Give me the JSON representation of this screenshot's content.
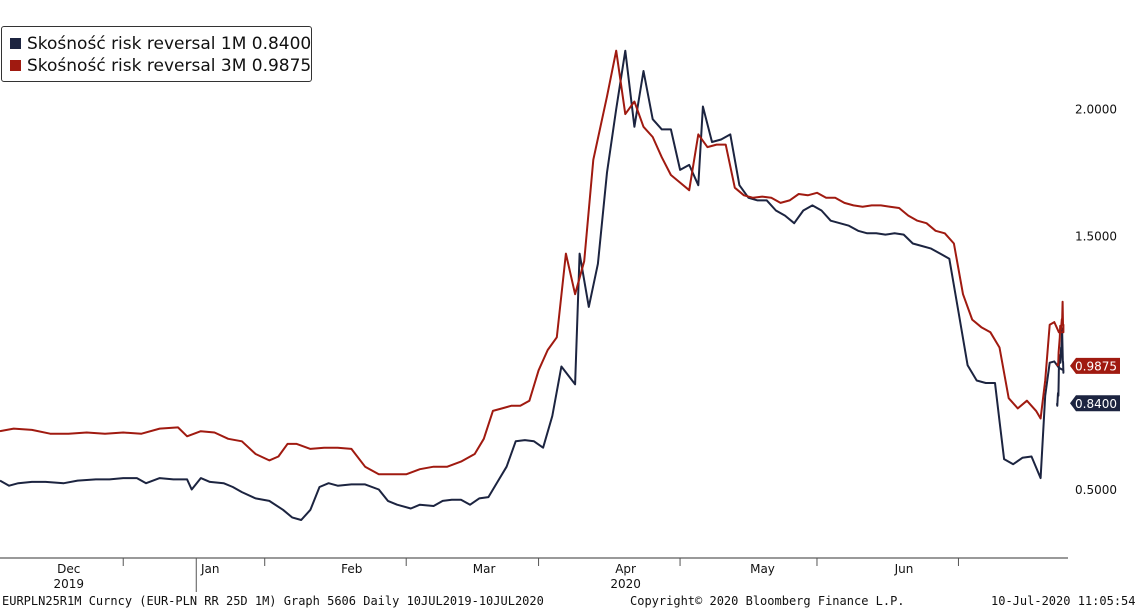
{
  "chart_data": {
    "type": "line",
    "x_range": [
      "2019-11-19",
      "2020-07-10"
    ],
    "ylim": [
      0.23,
      2.43
    ],
    "y_ticks": [
      {
        "value": 2.0,
        "label": "2.0000"
      },
      {
        "value": 1.5,
        "label": "1.5000"
      },
      {
        "value": 0.5,
        "label": "0.5000"
      }
    ],
    "x_month_labels": [
      {
        "date": "2019-12-01",
        "label": "Dec"
      },
      {
        "date": "2020-01-01",
        "label": "Jan"
      },
      {
        "date": "2020-02-01",
        "label": "Feb"
      },
      {
        "date": "2020-03-01",
        "label": "Mar"
      },
      {
        "date": "2020-04-01",
        "label": "Apr"
      },
      {
        "date": "2020-05-01",
        "label": "May"
      },
      {
        "date": "2020-06-01",
        "label": "Jun"
      }
    ],
    "x_month_separators": [
      "2019-12-16",
      "2020-01-16",
      "2020-02-16",
      "2020-03-16",
      "2020-04-16",
      "2020-05-16",
      "2020-06-16"
    ],
    "x_year_labels": [
      {
        "date": "2019-12-01",
        "label": "2019"
      },
      {
        "date": "2020-04-01",
        "label": "2020"
      }
    ],
    "x_year_separator": "2020-01-01",
    "grid": false,
    "legend_position": "top-left",
    "series": [
      {
        "name": "Skośność risk reversal 1M 0.8400",
        "color": "#1c2440",
        "last_value_label": "0.8400",
        "points": [
          [
            "2019-11-19",
            0.535
          ],
          [
            "2019-11-21",
            0.515
          ],
          [
            "2019-11-23",
            0.525
          ],
          [
            "2019-11-26",
            0.53
          ],
          [
            "2019-11-29",
            0.53
          ],
          [
            "2019-12-03",
            0.525
          ],
          [
            "2019-12-06",
            0.535
          ],
          [
            "2019-12-10",
            0.54
          ],
          [
            "2019-12-13",
            0.54
          ],
          [
            "2019-12-16",
            0.545
          ],
          [
            "2019-12-19",
            0.545
          ],
          [
            "2019-12-21",
            0.525
          ],
          [
            "2019-12-24",
            0.545
          ],
          [
            "2019-12-27",
            0.54
          ],
          [
            "2019-12-30",
            0.54
          ],
          [
            "2019-12-31",
            0.5
          ],
          [
            "2020-01-02",
            0.545
          ],
          [
            "2020-01-04",
            0.53
          ],
          [
            "2020-01-07",
            0.525
          ],
          [
            "2020-01-09",
            0.51
          ],
          [
            "2020-01-11",
            0.49
          ],
          [
            "2020-01-14",
            0.465
          ],
          [
            "2020-01-17",
            0.455
          ],
          [
            "2020-01-20",
            0.42
          ],
          [
            "2020-01-22",
            0.39
          ],
          [
            "2020-01-24",
            0.38
          ],
          [
            "2020-01-26",
            0.42
          ],
          [
            "2020-01-28",
            0.51
          ],
          [
            "2020-01-30",
            0.525
          ],
          [
            "2020-02-01",
            0.515
          ],
          [
            "2020-02-04",
            0.52
          ],
          [
            "2020-02-07",
            0.52
          ],
          [
            "2020-02-10",
            0.5
          ],
          [
            "2020-02-12",
            0.455
          ],
          [
            "2020-02-14",
            0.44
          ],
          [
            "2020-02-17",
            0.425
          ],
          [
            "2020-02-19",
            0.44
          ],
          [
            "2020-02-22",
            0.435
          ],
          [
            "2020-02-24",
            0.455
          ],
          [
            "2020-02-26",
            0.46
          ],
          [
            "2020-02-28",
            0.46
          ],
          [
            "2020-03-01",
            0.44
          ],
          [
            "2020-03-03",
            0.465
          ],
          [
            "2020-03-05",
            0.47
          ],
          [
            "2020-03-07",
            0.53
          ],
          [
            "2020-03-09",
            0.59
          ],
          [
            "2020-03-11",
            0.69
          ],
          [
            "2020-03-13",
            0.695
          ],
          [
            "2020-03-15",
            0.69
          ],
          [
            "2020-03-17",
            0.665
          ],
          [
            "2020-03-19",
            0.79
          ],
          [
            "2020-03-21",
            0.985
          ],
          [
            "2020-03-24",
            0.915
          ],
          [
            "2020-03-25",
            1.43
          ],
          [
            "2020-03-27",
            1.22
          ],
          [
            "2020-03-29",
            1.39
          ],
          [
            "2020-03-31",
            1.75
          ],
          [
            "2020-04-02",
            2.0
          ],
          [
            "2020-04-04",
            2.23
          ],
          [
            "2020-04-06",
            1.93
          ],
          [
            "2020-04-08",
            2.15
          ],
          [
            "2020-04-10",
            1.96
          ],
          [
            "2020-04-12",
            1.92
          ],
          [
            "2020-04-14",
            1.92
          ],
          [
            "2020-04-16",
            1.76
          ],
          [
            "2020-04-18",
            1.78
          ],
          [
            "2020-04-20",
            1.7
          ],
          [
            "2020-04-21",
            2.01
          ],
          [
            "2020-04-23",
            1.87
          ],
          [
            "2020-04-25",
            1.88
          ],
          [
            "2020-04-27",
            1.9
          ],
          [
            "2020-04-29",
            1.7
          ],
          [
            "2020-05-01",
            1.65
          ],
          [
            "2020-05-03",
            1.64
          ],
          [
            "2020-05-05",
            1.64
          ],
          [
            "2020-05-07",
            1.6
          ],
          [
            "2020-05-09",
            1.58
          ],
          [
            "2020-05-11",
            1.55
          ],
          [
            "2020-05-13",
            1.6
          ],
          [
            "2020-05-15",
            1.62
          ],
          [
            "2020-05-17",
            1.6
          ],
          [
            "2020-05-19",
            1.56
          ],
          [
            "2020-05-21",
            1.55
          ],
          [
            "2020-05-23",
            1.54
          ],
          [
            "2020-05-25",
            1.52
          ],
          [
            "2020-05-27",
            1.51
          ],
          [
            "2020-05-29",
            1.51
          ],
          [
            "2020-05-31",
            1.505
          ],
          [
            "2020-06-02",
            1.51
          ],
          [
            "2020-06-04",
            1.505
          ],
          [
            "2020-06-06",
            1.47
          ],
          [
            "2020-06-08",
            1.46
          ],
          [
            "2020-06-10",
            1.45
          ],
          [
            "2020-06-12",
            1.43
          ],
          [
            "2020-06-14",
            1.41
          ],
          [
            "2020-06-16",
            1.2
          ],
          [
            "2020-06-18",
            0.99
          ],
          [
            "2020-06-20",
            0.93
          ],
          [
            "2020-06-22",
            0.92
          ],
          [
            "2020-06-24",
            0.92
          ],
          [
            "2020-06-25",
            0.77
          ],
          [
            "2020-06-26",
            0.62
          ],
          [
            "2020-06-28",
            0.6
          ],
          [
            "2020-06-30",
            0.625
          ],
          [
            "2020-07-02",
            0.63
          ],
          [
            "2020-07-04",
            0.545
          ],
          [
            "2020-07-05",
            0.87
          ],
          [
            "2020-07-06",
            1.0
          ],
          [
            "2020-07-07",
            1.005
          ],
          [
            "2020-07-08",
            0.98
          ],
          [
            "2020-07-09",
            0.97
          ],
          [
            "2020-07-09",
            0.96
          ],
          [
            "2020-07-10",
            1.0
          ],
          [
            "2020-07-10",
            1.01
          ],
          [
            "2020-07-10",
            1.08
          ],
          [
            "2020-07-10",
            1.135
          ],
          [
            "2020-07-10",
            1.08
          ],
          [
            "2020-07-10",
            1.06
          ],
          [
            "2020-07-10",
            1.06
          ],
          [
            "2020-07-10",
            1.02
          ],
          [
            "2020-07-10",
            1.0
          ],
          [
            "2020-07-10",
            1.03
          ],
          [
            "2020-07-10",
            1.02
          ],
          [
            "2020-07-10",
            1.01
          ],
          [
            "2020-07-10",
            1.01
          ],
          [
            "2020-07-10",
            0.93
          ],
          [
            "2020-07-10",
            0.87
          ],
          [
            "2020-07-10",
            0.88
          ],
          [
            "2020-07-10",
            0.86
          ],
          [
            "2020-07-10",
            0.83
          ],
          [
            "2020-07-10",
            0.84
          ]
        ]
      },
      {
        "name": "Skośność risk reversal 3M 0.9875",
        "color": "#a01a10",
        "last_value_label": "0.9875",
        "points": [
          [
            "2019-11-19",
            0.73
          ],
          [
            "2019-11-22",
            0.74
          ],
          [
            "2019-11-26",
            0.735
          ],
          [
            "2019-11-30",
            0.72
          ],
          [
            "2019-12-04",
            0.72
          ],
          [
            "2019-12-08",
            0.725
          ],
          [
            "2019-12-12",
            0.72
          ],
          [
            "2019-12-16",
            0.725
          ],
          [
            "2019-12-20",
            0.72
          ],
          [
            "2019-12-24",
            0.74
          ],
          [
            "2019-12-28",
            0.745
          ],
          [
            "2019-12-30",
            0.71
          ],
          [
            "2020-01-02",
            0.73
          ],
          [
            "2020-01-05",
            0.725
          ],
          [
            "2020-01-08",
            0.7
          ],
          [
            "2020-01-11",
            0.69
          ],
          [
            "2020-01-14",
            0.64
          ],
          [
            "2020-01-17",
            0.615
          ],
          [
            "2020-01-19",
            0.63
          ],
          [
            "2020-01-21",
            0.68
          ],
          [
            "2020-01-23",
            0.68
          ],
          [
            "2020-01-26",
            0.66
          ],
          [
            "2020-01-29",
            0.665
          ],
          [
            "2020-02-01",
            0.665
          ],
          [
            "2020-02-04",
            0.66
          ],
          [
            "2020-02-07",
            0.59
          ],
          [
            "2020-02-10",
            0.56
          ],
          [
            "2020-02-13",
            0.56
          ],
          [
            "2020-02-16",
            0.56
          ],
          [
            "2020-02-19",
            0.58
          ],
          [
            "2020-02-22",
            0.59
          ],
          [
            "2020-02-25",
            0.59
          ],
          [
            "2020-02-28",
            0.61
          ],
          [
            "2020-03-02",
            0.64
          ],
          [
            "2020-03-04",
            0.7
          ],
          [
            "2020-03-06",
            0.81
          ],
          [
            "2020-03-08",
            0.82
          ],
          [
            "2020-03-10",
            0.83
          ],
          [
            "2020-03-12",
            0.83
          ],
          [
            "2020-03-14",
            0.85
          ],
          [
            "2020-03-16",
            0.97
          ],
          [
            "2020-03-18",
            1.05
          ],
          [
            "2020-03-20",
            1.1
          ],
          [
            "2020-03-22",
            1.43
          ],
          [
            "2020-03-24",
            1.27
          ],
          [
            "2020-03-26",
            1.4
          ],
          [
            "2020-03-28",
            1.8
          ],
          [
            "2020-03-31",
            2.05
          ],
          [
            "2020-04-02",
            2.23
          ],
          [
            "2020-04-04",
            1.98
          ],
          [
            "2020-04-06",
            2.03
          ],
          [
            "2020-04-08",
            1.93
          ],
          [
            "2020-04-10",
            1.89
          ],
          [
            "2020-04-12",
            1.81
          ],
          [
            "2020-04-14",
            1.74
          ],
          [
            "2020-04-16",
            1.71
          ],
          [
            "2020-04-18",
            1.68
          ],
          [
            "2020-04-20",
            1.9
          ],
          [
            "2020-04-22",
            1.85
          ],
          [
            "2020-04-24",
            1.86
          ],
          [
            "2020-04-26",
            1.86
          ],
          [
            "2020-04-28",
            1.69
          ],
          [
            "2020-04-30",
            1.66
          ],
          [
            "2020-05-02",
            1.65
          ],
          [
            "2020-05-04",
            1.655
          ],
          [
            "2020-05-06",
            1.65
          ],
          [
            "2020-05-08",
            1.63
          ],
          [
            "2020-05-10",
            1.64
          ],
          [
            "2020-05-12",
            1.665
          ],
          [
            "2020-05-14",
            1.66
          ],
          [
            "2020-05-16",
            1.67
          ],
          [
            "2020-05-18",
            1.65
          ],
          [
            "2020-05-20",
            1.65
          ],
          [
            "2020-05-22",
            1.63
          ],
          [
            "2020-05-24",
            1.62
          ],
          [
            "2020-05-26",
            1.615
          ],
          [
            "2020-05-28",
            1.62
          ],
          [
            "2020-05-30",
            1.62
          ],
          [
            "2020-06-01",
            1.615
          ],
          [
            "2020-06-03",
            1.61
          ],
          [
            "2020-06-05",
            1.58
          ],
          [
            "2020-06-07",
            1.56
          ],
          [
            "2020-06-09",
            1.55
          ],
          [
            "2020-06-11",
            1.52
          ],
          [
            "2020-06-13",
            1.51
          ],
          [
            "2020-06-15",
            1.47
          ],
          [
            "2020-06-17",
            1.27
          ],
          [
            "2020-06-19",
            1.17
          ],
          [
            "2020-06-21",
            1.14
          ],
          [
            "2020-06-23",
            1.12
          ],
          [
            "2020-06-25",
            1.06
          ],
          [
            "2020-06-27",
            0.86
          ],
          [
            "2020-06-29",
            0.82
          ],
          [
            "2020-07-01",
            0.85
          ],
          [
            "2020-07-03",
            0.81
          ],
          [
            "2020-07-04",
            0.78
          ],
          [
            "2020-07-05",
            0.93
          ],
          [
            "2020-07-06",
            1.15
          ],
          [
            "2020-07-07",
            1.16
          ],
          [
            "2020-07-08",
            1.12
          ],
          [
            "2020-07-09",
            1.12
          ],
          [
            "2020-07-09",
            1.15
          ],
          [
            "2020-07-10",
            1.15
          ],
          [
            "2020-07-10",
            1.24
          ],
          [
            "2020-07-10",
            1.175
          ],
          [
            "2020-07-10",
            1.17
          ],
          [
            "2020-07-10",
            1.15
          ],
          [
            "2020-07-10",
            1.13
          ],
          [
            "2020-07-10",
            1.13
          ],
          [
            "2020-07-10",
            1.145
          ],
          [
            "2020-07-10",
            1.1
          ],
          [
            "2020-07-10",
            1.08
          ],
          [
            "2020-07-10",
            1.06
          ],
          [
            "2020-07-10",
            1.04
          ],
          [
            "2020-07-10",
            0.99
          ],
          [
            "2020-07-10",
            0.995
          ],
          [
            "2020-07-10",
            0.99
          ],
          [
            "2020-07-10",
            0.9875
          ]
        ]
      }
    ]
  },
  "legend": {
    "items": [
      {
        "label": "Skośność risk reversal 1M 0.8400",
        "color": "#1c2440"
      },
      {
        "label": "Skośność risk reversal 3M 0.9875",
        "color": "#a01a10"
      }
    ]
  },
  "footer": {
    "left": "EURPLN25R1M Curncy (EUR-PLN RR 25D 1M) Graph 5606  Daily 10JUL2019-10JUL2020",
    "center": "Copyright© 2020 Bloomberg Finance L.P.",
    "right": "10-Jul-2020 11:05:54"
  }
}
